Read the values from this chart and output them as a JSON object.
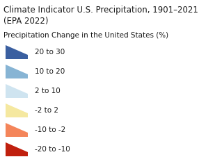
{
  "title_line1": "Climate Indicator U.S. Precipitation, 1901–2021",
  "title_line2": "(EPA 2022)",
  "subtitle": "Precipitation Change in the United States (%)",
  "categories": [
    "20 to 30",
    "10 to 20",
    "2 to 10",
    "-2 to 2",
    "-10 to -2",
    "-20 to -10"
  ],
  "colors": [
    "#3a5fa0",
    "#87b4d4",
    "#cfe4f0",
    "#f5e8a0",
    "#f4855a",
    "#c0200e"
  ],
  "bg_color": "#ffffff",
  "title_fontsize": 8.5,
  "subtitle_fontsize": 7.5,
  "label_fontsize": 7.5,
  "text_color": "#1a1a1a"
}
